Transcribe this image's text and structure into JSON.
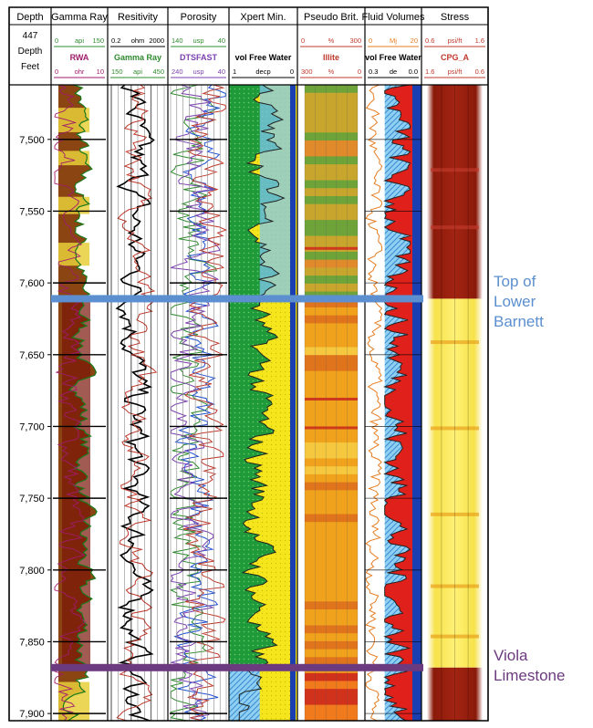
{
  "chart_data": {
    "type": "well-log",
    "depth_unit": "Feet",
    "depth_range": [
      7462,
      7905
    ],
    "depth_ticks": [
      "7,500",
      "7,550",
      "7,600",
      "7,650",
      "7,700",
      "7,750",
      "7,800",
      "7,850",
      "7,900"
    ],
    "depth_tick_values": [
      7500,
      7550,
      7600,
      7650,
      7700,
      7750,
      7800,
      7850,
      7900
    ],
    "header": {
      "depth_col": [
        "Depth",
        "447",
        "Depth",
        "Feet"
      ],
      "tracks": [
        {
          "title": "Gamma Ray",
          "curve1": {
            "left": "0",
            "unit": "api",
            "right": "150",
            "color": "#2e8b2e"
          },
          "name": "RWA",
          "name_color": "#a01b6b",
          "curve2": {
            "left": "0",
            "unit": "ohr",
            "right": "10",
            "color": "#a01b6b"
          }
        },
        {
          "title": "Resitivity",
          "curve1": {
            "left": "0.2",
            "unit": "ohm",
            "right": "2000",
            "color": "#000000"
          },
          "name": "Gamma Ray",
          "name_color": "#2e8b2e",
          "curve2": {
            "left": "150",
            "unit": "api",
            "right": "450",
            "color": "#2e8b2e"
          }
        },
        {
          "title": "Porosity",
          "curve1": {
            "left": "140",
            "unit": "usp",
            "right": "40",
            "color": "#2e8b2e"
          },
          "name": "DTSFAST",
          "name_color": "#7b3fb0",
          "curve2": {
            "left": "240",
            "unit": "usp",
            "right": "40",
            "color": "#7b3fb0"
          }
        },
        {
          "title": "Xpert Min.",
          "curve1": {
            "left": "",
            "unit": "",
            "right": "",
            "color": "#000000"
          },
          "name": "vol Free Water",
          "name_color": "#000000",
          "curve2": {
            "left": "1",
            "unit": "decp",
            "right": "0",
            "color": "#000000"
          }
        },
        {
          "title": "Pseudo Brit.",
          "curve1": {
            "left": "0",
            "unit": "%",
            "right": "300",
            "color": "#c0392b"
          },
          "name": "Illite",
          "name_color": "#c0392b",
          "curve2": {
            "left": "300",
            "unit": "%",
            "right": "0",
            "color": "#c0392b"
          }
        },
        {
          "title": "Fluid Volumes",
          "curve1": {
            "left": "0",
            "unit": "Mj",
            "right": "20",
            "color": "#e67e22"
          },
          "name": "vol Free Water",
          "name_color": "#000000",
          "curve2": {
            "left": "0.3",
            "unit": "de",
            "right": "0.0",
            "color": "#000000"
          }
        },
        {
          "title": "Stress",
          "curve1": {
            "left": "0.6",
            "unit": "psi/ft",
            "right": "1.6",
            "color": "#c0392b"
          },
          "name": "CPG_A",
          "name_color": "#c0392b",
          "curve2": {
            "left": "1.6",
            "unit": "psi/ft",
            "right": "0.6",
            "color": "#c0392b"
          }
        }
      ]
    },
    "formation_tops": [
      {
        "lines": [
          "Top of",
          "Lower",
          "Barnett"
        ],
        "depth": 7611,
        "color": "#5b8fd0"
      },
      {
        "lines": [
          "Viola",
          "Limestone"
        ],
        "depth": 7868,
        "color": "#6c3a7f"
      }
    ]
  }
}
